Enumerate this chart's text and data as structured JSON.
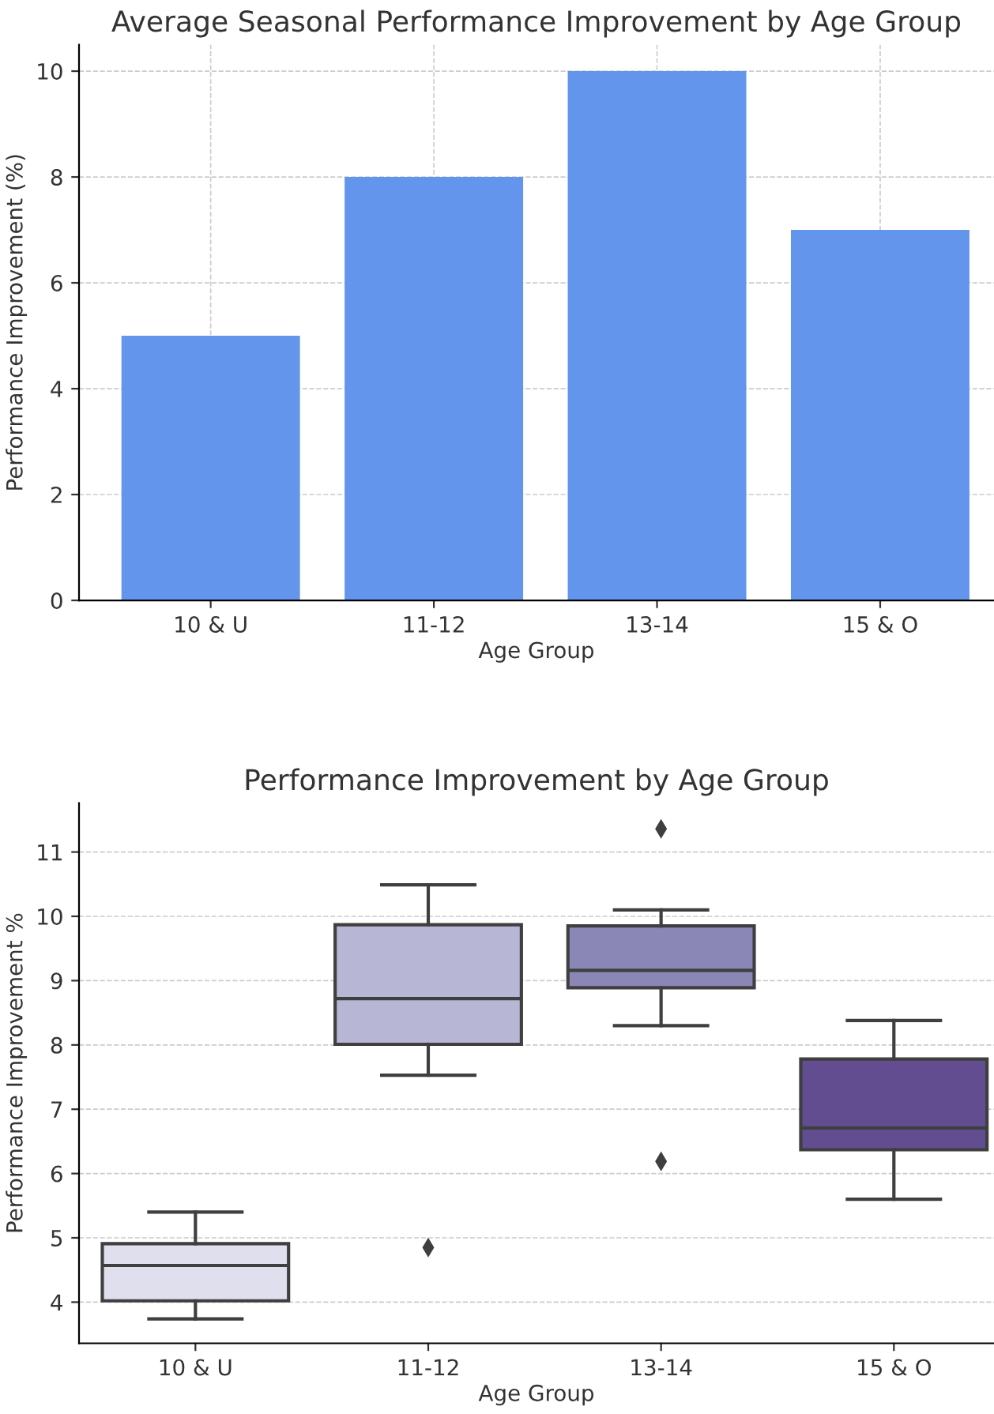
{
  "chart_data": [
    {
      "type": "bar",
      "title": "Average Seasonal Performance Improvement by Age Group",
      "xlabel": "Age Group",
      "ylabel": "Performance Improvement (%)",
      "categories": [
        "10 & U",
        "11-12",
        "13-14",
        "15 & O"
      ],
      "values": [
        5,
        8,
        10,
        7
      ],
      "color": "#6495ed",
      "ylim": [
        0,
        10.5
      ],
      "yticks": [
        0,
        2,
        4,
        6,
        8,
        10
      ],
      "grid": true
    },
    {
      "type": "box",
      "title": "Performance Improvement by Age Group",
      "xlabel": "Age Group",
      "ylabel": "Performance Improvement %",
      "categories": [
        "10 & U",
        "11-12",
        "13-14",
        "15 & O"
      ],
      "colors": [
        "#e0dfee",
        "#b7b6d5",
        "#8a87b6",
        "#624d91"
      ],
      "marker": "diamond",
      "boxes": [
        {
          "low": 3.74,
          "q1": 4.02,
          "median": 4.57,
          "q3": 4.91,
          "high": 5.4
        },
        {
          "low": 7.53,
          "q1": 8.01,
          "median": 8.72,
          "q3": 9.87,
          "high": 10.49,
          "outliers": [
            4.85
          ]
        },
        {
          "low": 8.3,
          "q1": 8.89,
          "median": 9.16,
          "q3": 9.85,
          "high": 10.1,
          "outliers": [
            11.36,
            6.19
          ]
        },
        {
          "low": 5.6,
          "q1": 6.37,
          "median": 6.71,
          "q3": 7.78,
          "high": 8.38
        }
      ],
      "ylim": [
        3.36,
        11.76
      ],
      "yticks": [
        4,
        5,
        6,
        7,
        8,
        9,
        10,
        11
      ],
      "grid": "y"
    }
  ]
}
